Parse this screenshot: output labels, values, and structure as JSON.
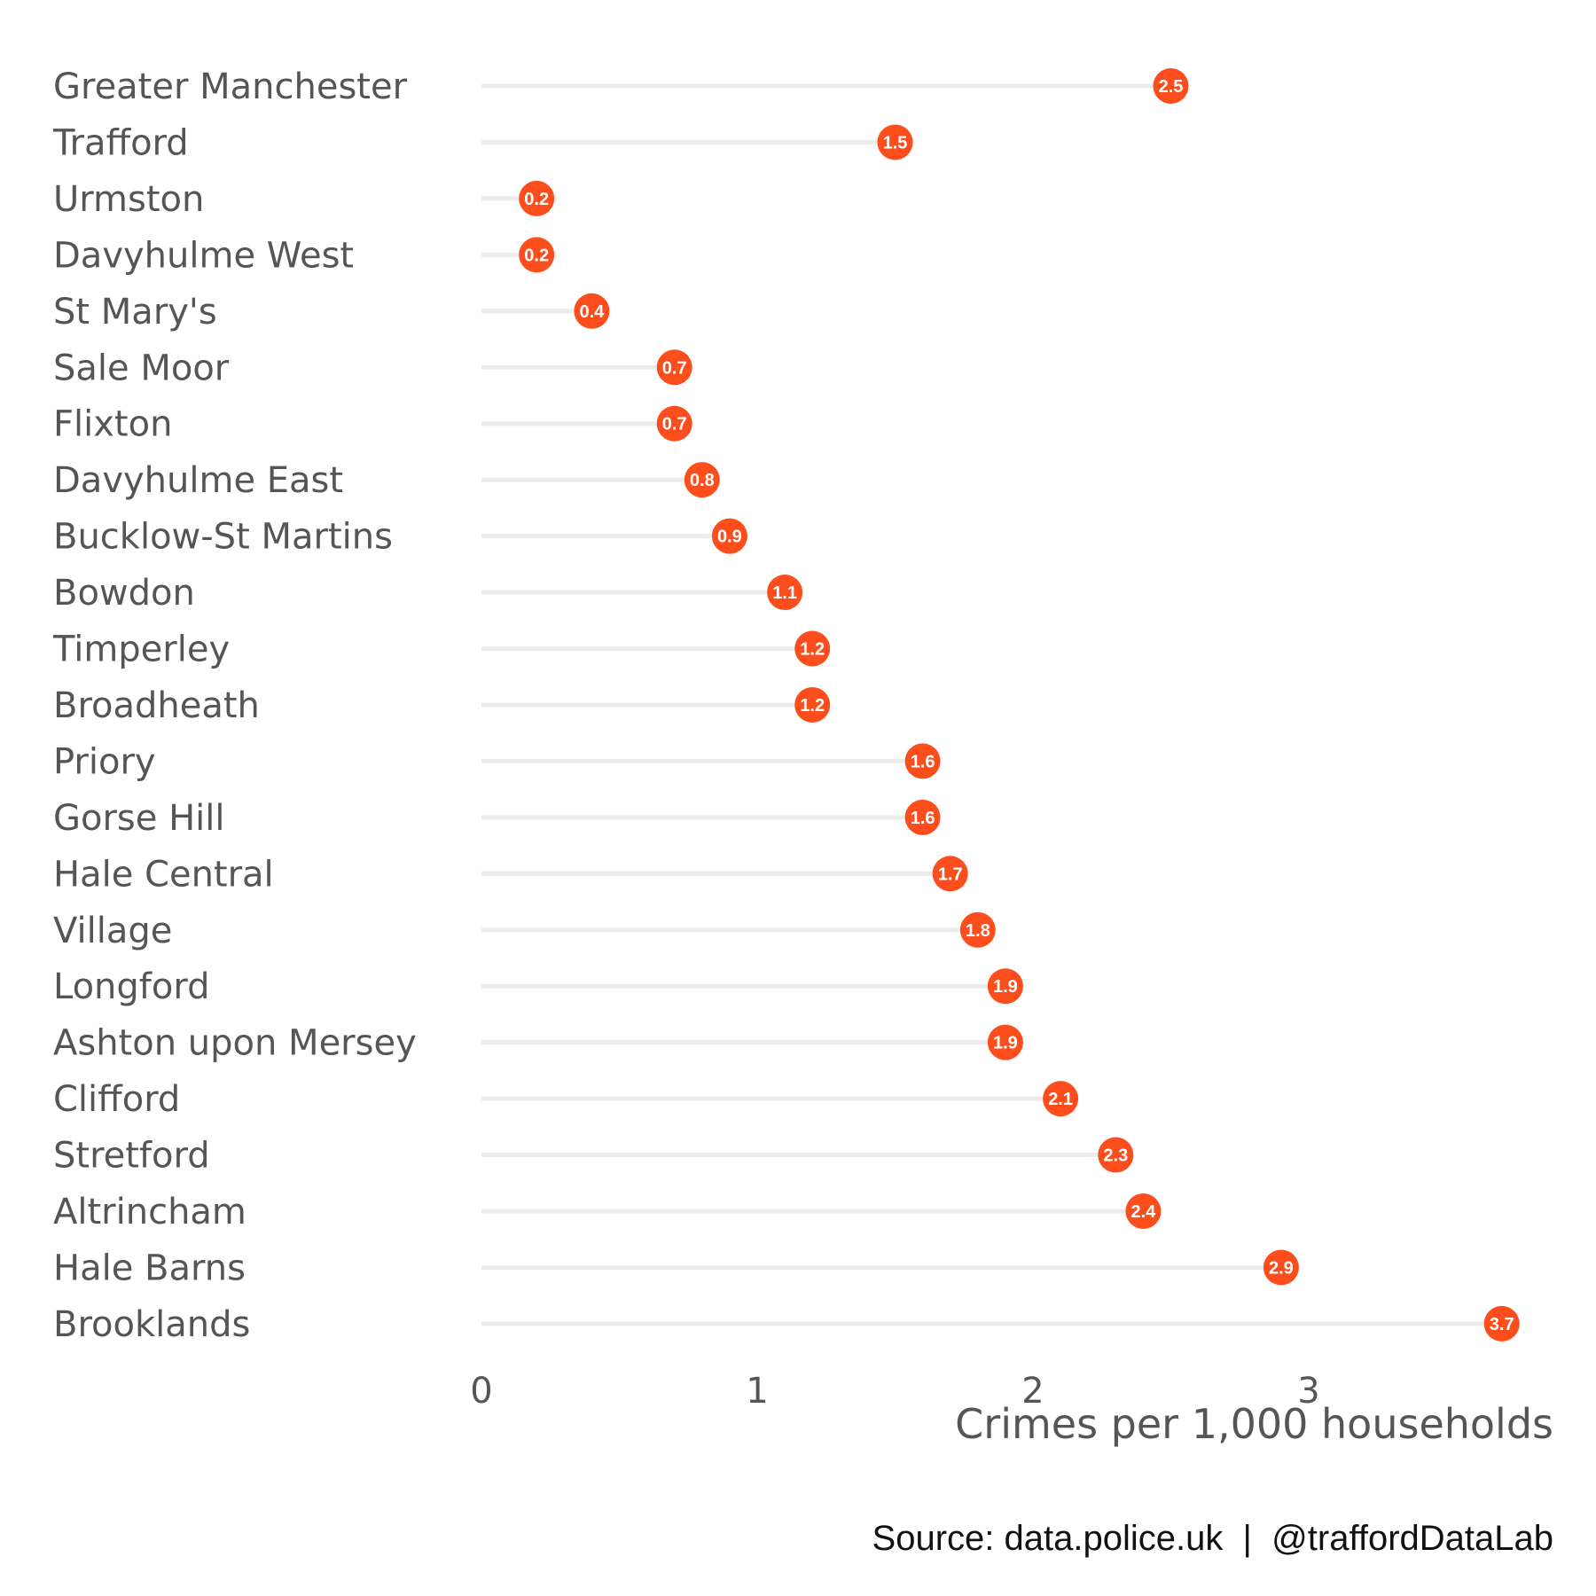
{
  "chart_data": {
    "type": "lollipop",
    "categories": [
      "Greater Manchester",
      "Trafford",
      "Urmston",
      "Davyhulme West",
      "St Mary's",
      "Sale Moor",
      "Flixton",
      "Davyhulme East",
      "Bucklow-St Martins",
      "Bowdon",
      "Timperley",
      "Broadheath",
      "Priory",
      "Gorse Hill",
      "Hale Central",
      "Village",
      "Longford",
      "Ashton upon Mersey",
      "Clifford",
      "Stretford",
      "Altrincham",
      "Hale Barns",
      "Brooklands"
    ],
    "values": [
      2.5,
      1.5,
      0.2,
      0.2,
      0.4,
      0.7,
      0.7,
      0.8,
      0.9,
      1.1,
      1.2,
      1.2,
      1.6,
      1.6,
      1.7,
      1.8,
      1.9,
      1.9,
      2.1,
      2.3,
      2.4,
      2.9,
      3.7
    ],
    "value_labels": [
      "2.5",
      "1.5",
      "0.2",
      "0.2",
      "0.4",
      "0.7",
      "0.7",
      "0.8",
      "0.9",
      "1.1",
      "1.2",
      "1.2",
      "1.6",
      "1.6",
      "1.7",
      "1.8",
      "1.9",
      "1.9",
      "2.1",
      "2.3",
      "2.4",
      "2.9",
      "3.7"
    ],
    "x_ticks": [
      "0",
      "1",
      "2",
      "3"
    ],
    "xlim": [
      0,
      3.7
    ],
    "xlabel": "Crimes per 1,000 households",
    "title": "",
    "grid": false,
    "colors": {
      "point": "#fc4e1d",
      "segment": "#ececec",
      "label_text": "#ffffff",
      "axis_text": "#555555"
    }
  },
  "caption": "Source: data.police.uk  |  @traffordDataLab"
}
